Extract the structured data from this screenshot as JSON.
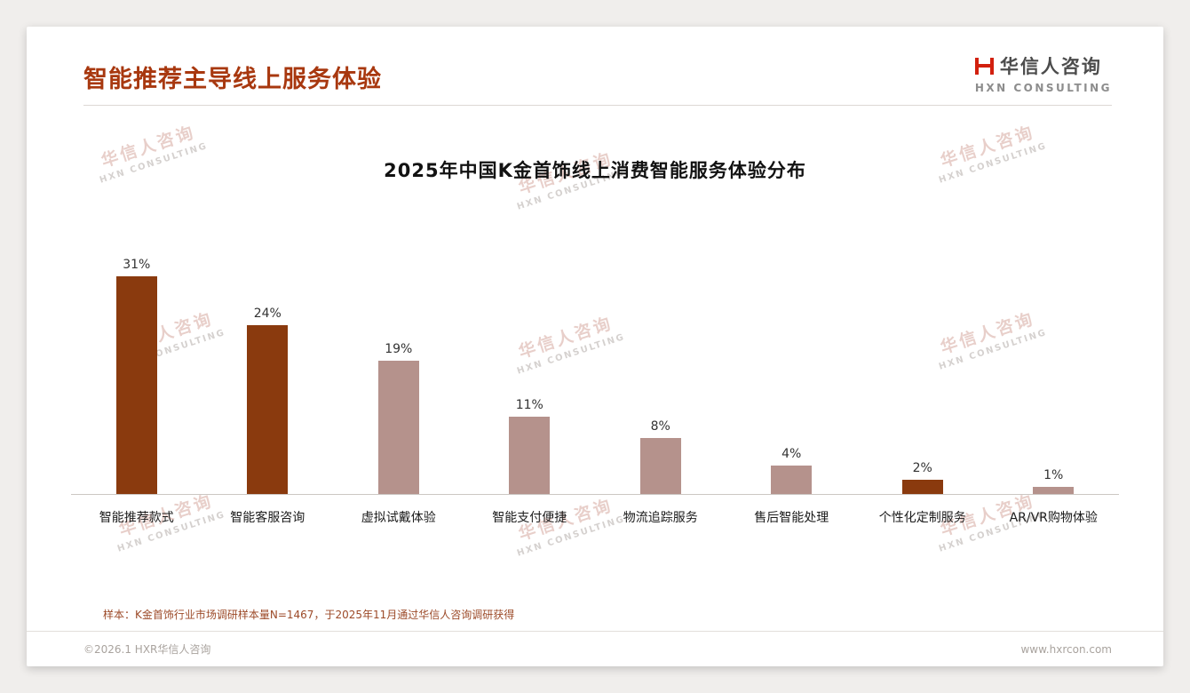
{
  "header": {
    "title": "智能推荐主导线上服务体验",
    "logo_zh": "华信人咨询",
    "logo_en": "HXN CONSULTING"
  },
  "watermark": {
    "zh": "华信人咨询",
    "en": "HXN CONSULTING"
  },
  "chart_data": {
    "type": "bar",
    "title": "2025年中国K金首饰线上消费智能服务体验分布",
    "categories": [
      "智能推荐款式",
      "智能客服咨询",
      "虚拟试戴体验",
      "智能支付便捷",
      "物流追踪服务",
      "售后智能处理",
      "个性化定制服务",
      "AR/VR购物体验"
    ],
    "values": [
      31,
      24,
      19,
      11,
      8,
      4,
      2,
      1
    ],
    "value_labels": [
      "31%",
      "24%",
      "19%",
      "11%",
      "8%",
      "4%",
      "2%",
      "1%"
    ],
    "bar_colors": [
      "#8a3a0e",
      "#8a3a0e",
      "#b5928c",
      "#b5928c",
      "#b5928c",
      "#b5928c",
      "#8a3a0e",
      "#b5928c"
    ],
    "ylim": [
      0,
      35
    ],
    "grid": false,
    "legend": "none",
    "xlabel": "",
    "ylabel": ""
  },
  "footer": {
    "sample_note": "样本：K金首饰行业市场调研样本量N=1467，于2025年11月通过华信人咨询调研获得",
    "left": "©2026.1 HXR华信人咨询",
    "right": "www.hxrcon.com"
  }
}
